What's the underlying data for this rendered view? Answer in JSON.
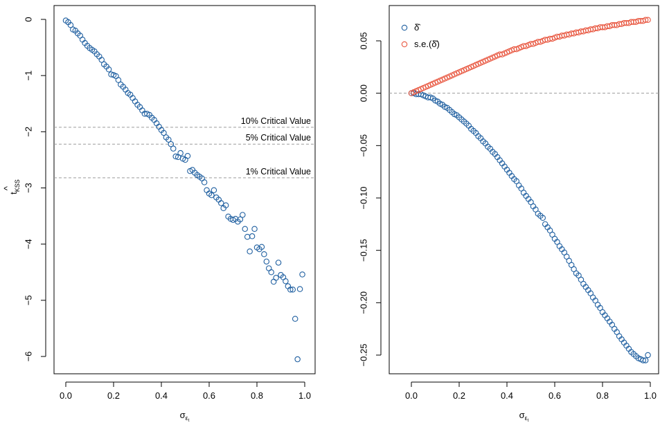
{
  "chart_data": [
    {
      "type": "scatter",
      "xlabel_symbol": "σ",
      "xlabel_sub": "ε",
      "xlabel_subsub": "t",
      "ylabel_base": "t",
      "ylabel_hat": "^",
      "ylabel_sub": "KSS",
      "xlim": [
        0,
        1
      ],
      "ylim": [
        -6.3,
        0.1
      ],
      "xticks": [
        0.0,
        0.2,
        0.4,
        0.6,
        0.8,
        1.0
      ],
      "xtick_labels": [
        "0.0",
        "0.2",
        "0.4",
        "0.6",
        "0.8",
        "1.0"
      ],
      "yticks": [
        0,
        -1,
        -2,
        -3,
        -4,
        -5,
        -6
      ],
      "ytick_labels": [
        "0",
        "−1",
        "−2",
        "−3",
        "−4",
        "−5",
        "−6"
      ],
      "reference_lines": [
        {
          "label": "10% Critical Value",
          "y": -1.92
        },
        {
          "label": "5% Critical Value",
          "y": -2.22
        },
        {
          "label": "1% Critical Value",
          "y": -2.82
        }
      ],
      "series": [
        {
          "color": "#1f5fa0",
          "marker": "open-circle",
          "x": [
            0.0,
            0.01,
            0.02,
            0.03,
            0.04,
            0.05,
            0.06,
            0.07,
            0.08,
            0.09,
            0.1,
            0.11,
            0.12,
            0.13,
            0.14,
            0.15,
            0.16,
            0.17,
            0.18,
            0.19,
            0.2,
            0.21,
            0.22,
            0.23,
            0.24,
            0.25,
            0.26,
            0.27,
            0.28,
            0.29,
            0.3,
            0.31,
            0.32,
            0.33,
            0.34,
            0.35,
            0.36,
            0.37,
            0.38,
            0.39,
            0.4,
            0.41,
            0.42,
            0.43,
            0.44,
            0.45,
            0.46,
            0.47,
            0.48,
            0.49,
            0.5,
            0.51,
            0.52,
            0.53,
            0.54,
            0.55,
            0.56,
            0.57,
            0.58,
            0.59,
            0.6,
            0.61,
            0.62,
            0.63,
            0.64,
            0.65,
            0.66,
            0.67,
            0.68,
            0.69,
            0.7,
            0.71,
            0.72,
            0.73,
            0.74,
            0.75,
            0.76,
            0.77,
            0.78,
            0.79,
            0.8,
            0.81,
            0.82,
            0.83,
            0.84,
            0.85,
            0.86,
            0.87,
            0.88,
            0.89,
            0.9,
            0.91,
            0.92,
            0.93,
            0.94,
            0.95,
            0.96,
            0.97,
            0.98,
            0.99
          ],
          "y": [
            -0.02,
            -0.05,
            -0.1,
            -0.18,
            -0.2,
            -0.25,
            -0.29,
            -0.36,
            -0.42,
            -0.47,
            -0.51,
            -0.54,
            -0.57,
            -0.62,
            -0.66,
            -0.72,
            -0.8,
            -0.84,
            -0.89,
            -0.98,
            -0.99,
            -1.01,
            -1.08,
            -1.16,
            -1.2,
            -1.25,
            -1.31,
            -1.34,
            -1.4,
            -1.46,
            -1.52,
            -1.56,
            -1.62,
            -1.68,
            -1.68,
            -1.7,
            -1.75,
            -1.79,
            -1.85,
            -1.91,
            -1.97,
            -2.02,
            -2.1,
            -2.14,
            -2.22,
            -2.3,
            -2.44,
            -2.45,
            -2.38,
            -2.48,
            -2.5,
            -2.43,
            -2.7,
            -2.68,
            -2.73,
            -2.77,
            -2.8,
            -2.83,
            -2.9,
            -3.04,
            -3.1,
            -3.13,
            -3.04,
            -3.17,
            -3.21,
            -3.27,
            -3.36,
            -3.31,
            -3.51,
            -3.55,
            -3.57,
            -3.55,
            -3.6,
            -3.56,
            -3.48,
            -3.73,
            -3.87,
            -4.13,
            -3.86,
            -3.73,
            -4.06,
            -4.09,
            -4.05,
            -4.18,
            -4.31,
            -4.43,
            -4.5,
            -4.67,
            -4.6,
            -4.33,
            -4.55,
            -4.59,
            -4.66,
            -4.75,
            -4.81,
            -4.81,
            -5.33,
            -6.05,
            -4.8,
            -4.54
          ]
        }
      ]
    },
    {
      "type": "scatter",
      "xlabel_symbol": "σ",
      "xlabel_sub": "ε",
      "xlabel_subsub": "t",
      "ylabel": "",
      "xlim": [
        0,
        1
      ],
      "ylim": [
        -0.26,
        0.075
      ],
      "xticks": [
        0.0,
        0.2,
        0.4,
        0.6,
        0.8,
        1.0
      ],
      "xtick_labels": [
        "0.0",
        "0.2",
        "0.4",
        "0.6",
        "0.8",
        "1.0"
      ],
      "yticks": [
        0.05,
        0.0,
        -0.05,
        -0.1,
        -0.15,
        -0.2,
        -0.25
      ],
      "ytick_labels": [
        "0.05",
        "0.00",
        "−0.05",
        "−0.10",
        "−0.15",
        "−0.20",
        "−0.25"
      ],
      "reference_lines": [
        {
          "label": "",
          "y": 0.0
        }
      ],
      "legend_position": "top-left",
      "series": [
        {
          "name": "δ̂",
          "color": "#1f5fa0",
          "marker": "open-circle",
          "x": [
            0.0,
            0.01,
            0.02,
            0.03,
            0.04,
            0.05,
            0.06,
            0.07,
            0.08,
            0.09,
            0.1,
            0.11,
            0.12,
            0.13,
            0.14,
            0.15,
            0.16,
            0.17,
            0.18,
            0.19,
            0.2,
            0.21,
            0.22,
            0.23,
            0.24,
            0.25,
            0.26,
            0.27,
            0.28,
            0.29,
            0.3,
            0.31,
            0.32,
            0.33,
            0.34,
            0.35,
            0.36,
            0.37,
            0.38,
            0.39,
            0.4,
            0.41,
            0.42,
            0.43,
            0.44,
            0.45,
            0.46,
            0.47,
            0.48,
            0.49,
            0.5,
            0.51,
            0.52,
            0.53,
            0.54,
            0.55,
            0.56,
            0.57,
            0.58,
            0.59,
            0.6,
            0.61,
            0.62,
            0.63,
            0.64,
            0.65,
            0.66,
            0.67,
            0.68,
            0.69,
            0.7,
            0.71,
            0.72,
            0.73,
            0.74,
            0.75,
            0.76,
            0.77,
            0.78,
            0.79,
            0.8,
            0.81,
            0.82,
            0.83,
            0.84,
            0.85,
            0.86,
            0.87,
            0.88,
            0.89,
            0.9,
            0.91,
            0.92,
            0.93,
            0.94,
            0.95,
            0.96,
            0.97,
            0.98,
            0.99
          ],
          "y": [
            0.0,
            -0.0,
            -0.001,
            -0.001,
            -0.001,
            -0.002,
            -0.003,
            -0.004,
            -0.004,
            -0.005,
            -0.007,
            -0.008,
            -0.01,
            -0.011,
            -0.013,
            -0.014,
            -0.016,
            -0.018,
            -0.02,
            -0.021,
            -0.023,
            -0.025,
            -0.027,
            -0.029,
            -0.031,
            -0.034,
            -0.036,
            -0.038,
            -0.041,
            -0.043,
            -0.046,
            -0.048,
            -0.051,
            -0.053,
            -0.056,
            -0.058,
            -0.061,
            -0.064,
            -0.067,
            -0.07,
            -0.073,
            -0.076,
            -0.079,
            -0.082,
            -0.084,
            -0.088,
            -0.091,
            -0.095,
            -0.098,
            -0.101,
            -0.104,
            -0.108,
            -0.111,
            -0.115,
            -0.117,
            -0.119,
            -0.125,
            -0.128,
            -0.131,
            -0.135,
            -0.139,
            -0.142,
            -0.146,
            -0.149,
            -0.152,
            -0.156,
            -0.16,
            -0.164,
            -0.168,
            -0.172,
            -0.174,
            -0.178,
            -0.182,
            -0.185,
            -0.188,
            -0.191,
            -0.195,
            -0.198,
            -0.202,
            -0.205,
            -0.209,
            -0.212,
            -0.215,
            -0.218,
            -0.221,
            -0.225,
            -0.228,
            -0.232,
            -0.235,
            -0.238,
            -0.241,
            -0.244,
            -0.247,
            -0.249,
            -0.251,
            -0.253,
            -0.254,
            -0.255,
            -0.255,
            -0.25
          ]
        },
        {
          "name": "s.e.(δ̂)",
          "color": "#e8563f",
          "marker": "open-circle",
          "x": [
            0.0,
            0.01,
            0.02,
            0.03,
            0.04,
            0.05,
            0.06,
            0.07,
            0.08,
            0.09,
            0.1,
            0.11,
            0.12,
            0.13,
            0.14,
            0.15,
            0.16,
            0.17,
            0.18,
            0.19,
            0.2,
            0.21,
            0.22,
            0.23,
            0.24,
            0.25,
            0.26,
            0.27,
            0.28,
            0.29,
            0.3,
            0.31,
            0.32,
            0.33,
            0.34,
            0.35,
            0.36,
            0.37,
            0.38,
            0.39,
            0.4,
            0.41,
            0.42,
            0.43,
            0.44,
            0.45,
            0.46,
            0.47,
            0.48,
            0.49,
            0.5,
            0.51,
            0.52,
            0.53,
            0.54,
            0.55,
            0.56,
            0.57,
            0.58,
            0.59,
            0.6,
            0.61,
            0.62,
            0.63,
            0.64,
            0.65,
            0.66,
            0.67,
            0.68,
            0.69,
            0.7,
            0.71,
            0.72,
            0.73,
            0.74,
            0.75,
            0.76,
            0.77,
            0.78,
            0.79,
            0.8,
            0.81,
            0.82,
            0.83,
            0.84,
            0.85,
            0.86,
            0.87,
            0.88,
            0.89,
            0.9,
            0.91,
            0.92,
            0.93,
            0.94,
            0.95,
            0.96,
            0.97,
            0.98,
            0.99
          ],
          "y": [
            0.0,
            0.001,
            0.002,
            0.003,
            0.004,
            0.005,
            0.006,
            0.007,
            0.008,
            0.009,
            0.01,
            0.011,
            0.012,
            0.013,
            0.014,
            0.015,
            0.016,
            0.017,
            0.018,
            0.019,
            0.02,
            0.021,
            0.022,
            0.023,
            0.024,
            0.025,
            0.026,
            0.027,
            0.028,
            0.029,
            0.03,
            0.031,
            0.032,
            0.033,
            0.034,
            0.035,
            0.036,
            0.037,
            0.037,
            0.038,
            0.039,
            0.04,
            0.041,
            0.042,
            0.042,
            0.043,
            0.044,
            0.045,
            0.045,
            0.046,
            0.047,
            0.047,
            0.048,
            0.049,
            0.049,
            0.05,
            0.051,
            0.051,
            0.052,
            0.052,
            0.053,
            0.054,
            0.054,
            0.055,
            0.055,
            0.056,
            0.056,
            0.057,
            0.057,
            0.058,
            0.058,
            0.059,
            0.059,
            0.06,
            0.06,
            0.061,
            0.061,
            0.062,
            0.062,
            0.063,
            0.063,
            0.063,
            0.064,
            0.064,
            0.065,
            0.065,
            0.065,
            0.066,
            0.066,
            0.067,
            0.067,
            0.067,
            0.068,
            0.068,
            0.068,
            0.069,
            0.069,
            0.069,
            0.07,
            0.07
          ]
        }
      ]
    }
  ]
}
